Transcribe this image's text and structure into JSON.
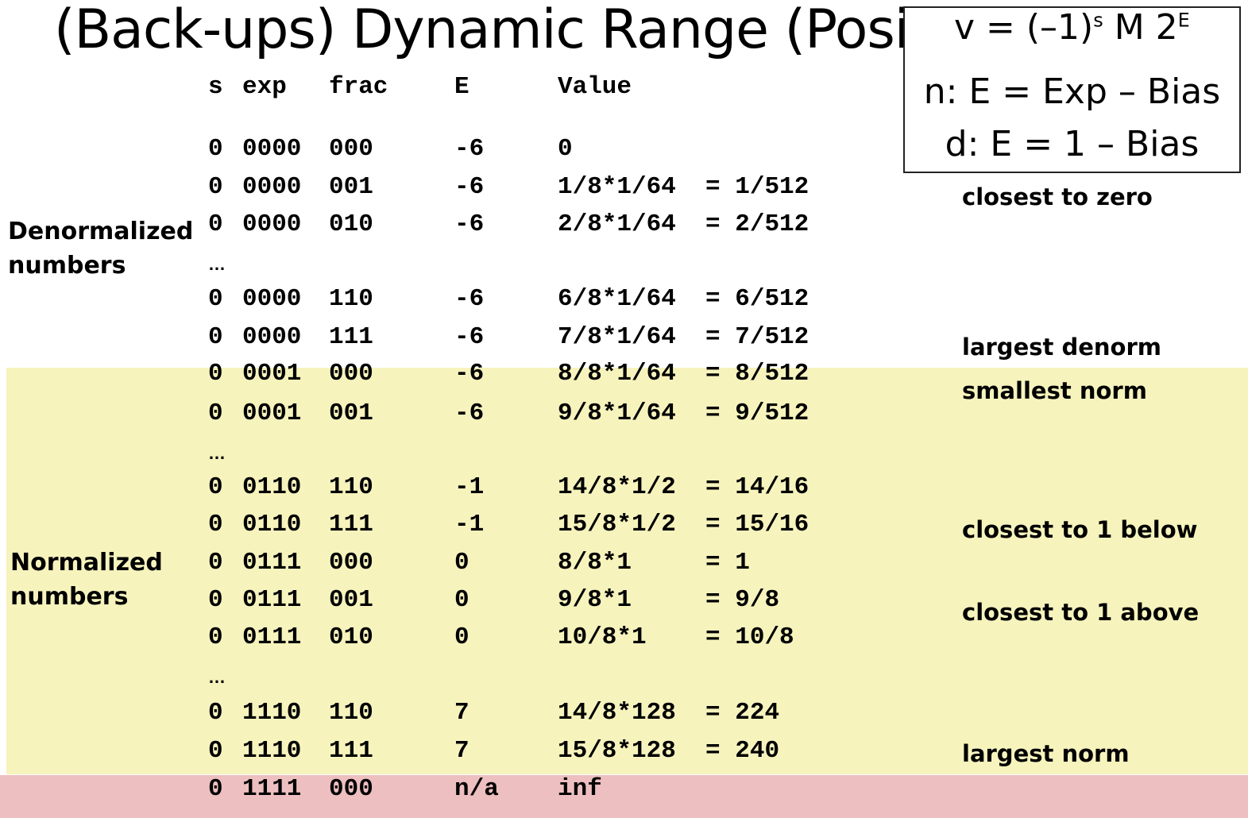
{
  "title": "(Back-ups) Dynamic Range (Positive Only)",
  "formula": {
    "v_main": "v = (–1)",
    "v_s": "s",
    "v_mid": " M 2",
    "v_e": "E",
    "normalized": "n: E = Exp – Bias",
    "denormalized": "d: E = 1 – Bias"
  },
  "headers": {
    "s": "s",
    "exp": "exp",
    "frac": "frac",
    "E": "E",
    "value": "Value"
  },
  "section_labels": {
    "denormalized": "Denormalized numbers",
    "normalized": "Normalized numbers"
  },
  "ellipsis": "…",
  "rows": [
    {
      "s": "0",
      "exp": "0000",
      "frac": "000",
      "E": "-6",
      "value": "0"
    },
    {
      "s": "0",
      "exp": "0000",
      "frac": "001",
      "E": "-6",
      "value": "1/8*1/64  = 1/512"
    },
    {
      "s": "0",
      "exp": "0000",
      "frac": "010",
      "E": "-6",
      "value": "2/8*1/64  = 2/512"
    },
    {
      "s": "0",
      "exp": "0000",
      "frac": "110",
      "E": "-6",
      "value": "6/8*1/64  = 6/512"
    },
    {
      "s": "0",
      "exp": "0000",
      "frac": "111",
      "E": "-6",
      "value": "7/8*1/64  = 7/512"
    },
    {
      "s": "0",
      "exp": "0001",
      "frac": "000",
      "E": "-6",
      "value": "8/8*1/64  = 8/512"
    },
    {
      "s": "0",
      "exp": "0001",
      "frac": "001",
      "E": "-6",
      "value": "9/8*1/64  = 9/512"
    },
    {
      "s": "0",
      "exp": "0110",
      "frac": "110",
      "E": "-1",
      "value": "14/8*1/2  = 14/16"
    },
    {
      "s": "0",
      "exp": "0110",
      "frac": "111",
      "E": "-1",
      "value": "15/8*1/2  = 15/16"
    },
    {
      "s": "0",
      "exp": "0111",
      "frac": "000",
      "E": "0",
      "value": "8/8*1     = 1"
    },
    {
      "s": "0",
      "exp": "0111",
      "frac": "001",
      "E": "0",
      "value": "9/8*1     = 9/8"
    },
    {
      "s": "0",
      "exp": "0111",
      "frac": "010",
      "E": "0",
      "value": "10/8*1    = 10/8"
    },
    {
      "s": "0",
      "exp": "1110",
      "frac": "110",
      "E": "7",
      "value": "14/8*128  = 224"
    },
    {
      "s": "0",
      "exp": "1110",
      "frac": "111",
      "E": "7",
      "value": "15/8*128  = 240"
    },
    {
      "s": "0",
      "exp": "1111",
      "frac": "000",
      "E": "n/a",
      "value": "inf"
    }
  ],
  "notes": {
    "closest_to_zero": "closest to zero",
    "largest_denorm": "largest denorm",
    "smallest_norm": "smallest norm",
    "closest_below": "closest to 1 below",
    "closest_above": "closest to 1 above",
    "largest_norm": "largest norm"
  },
  "colors": {
    "normalized_band": "#f6f3bd",
    "infinity_band": "#eebfc0"
  }
}
